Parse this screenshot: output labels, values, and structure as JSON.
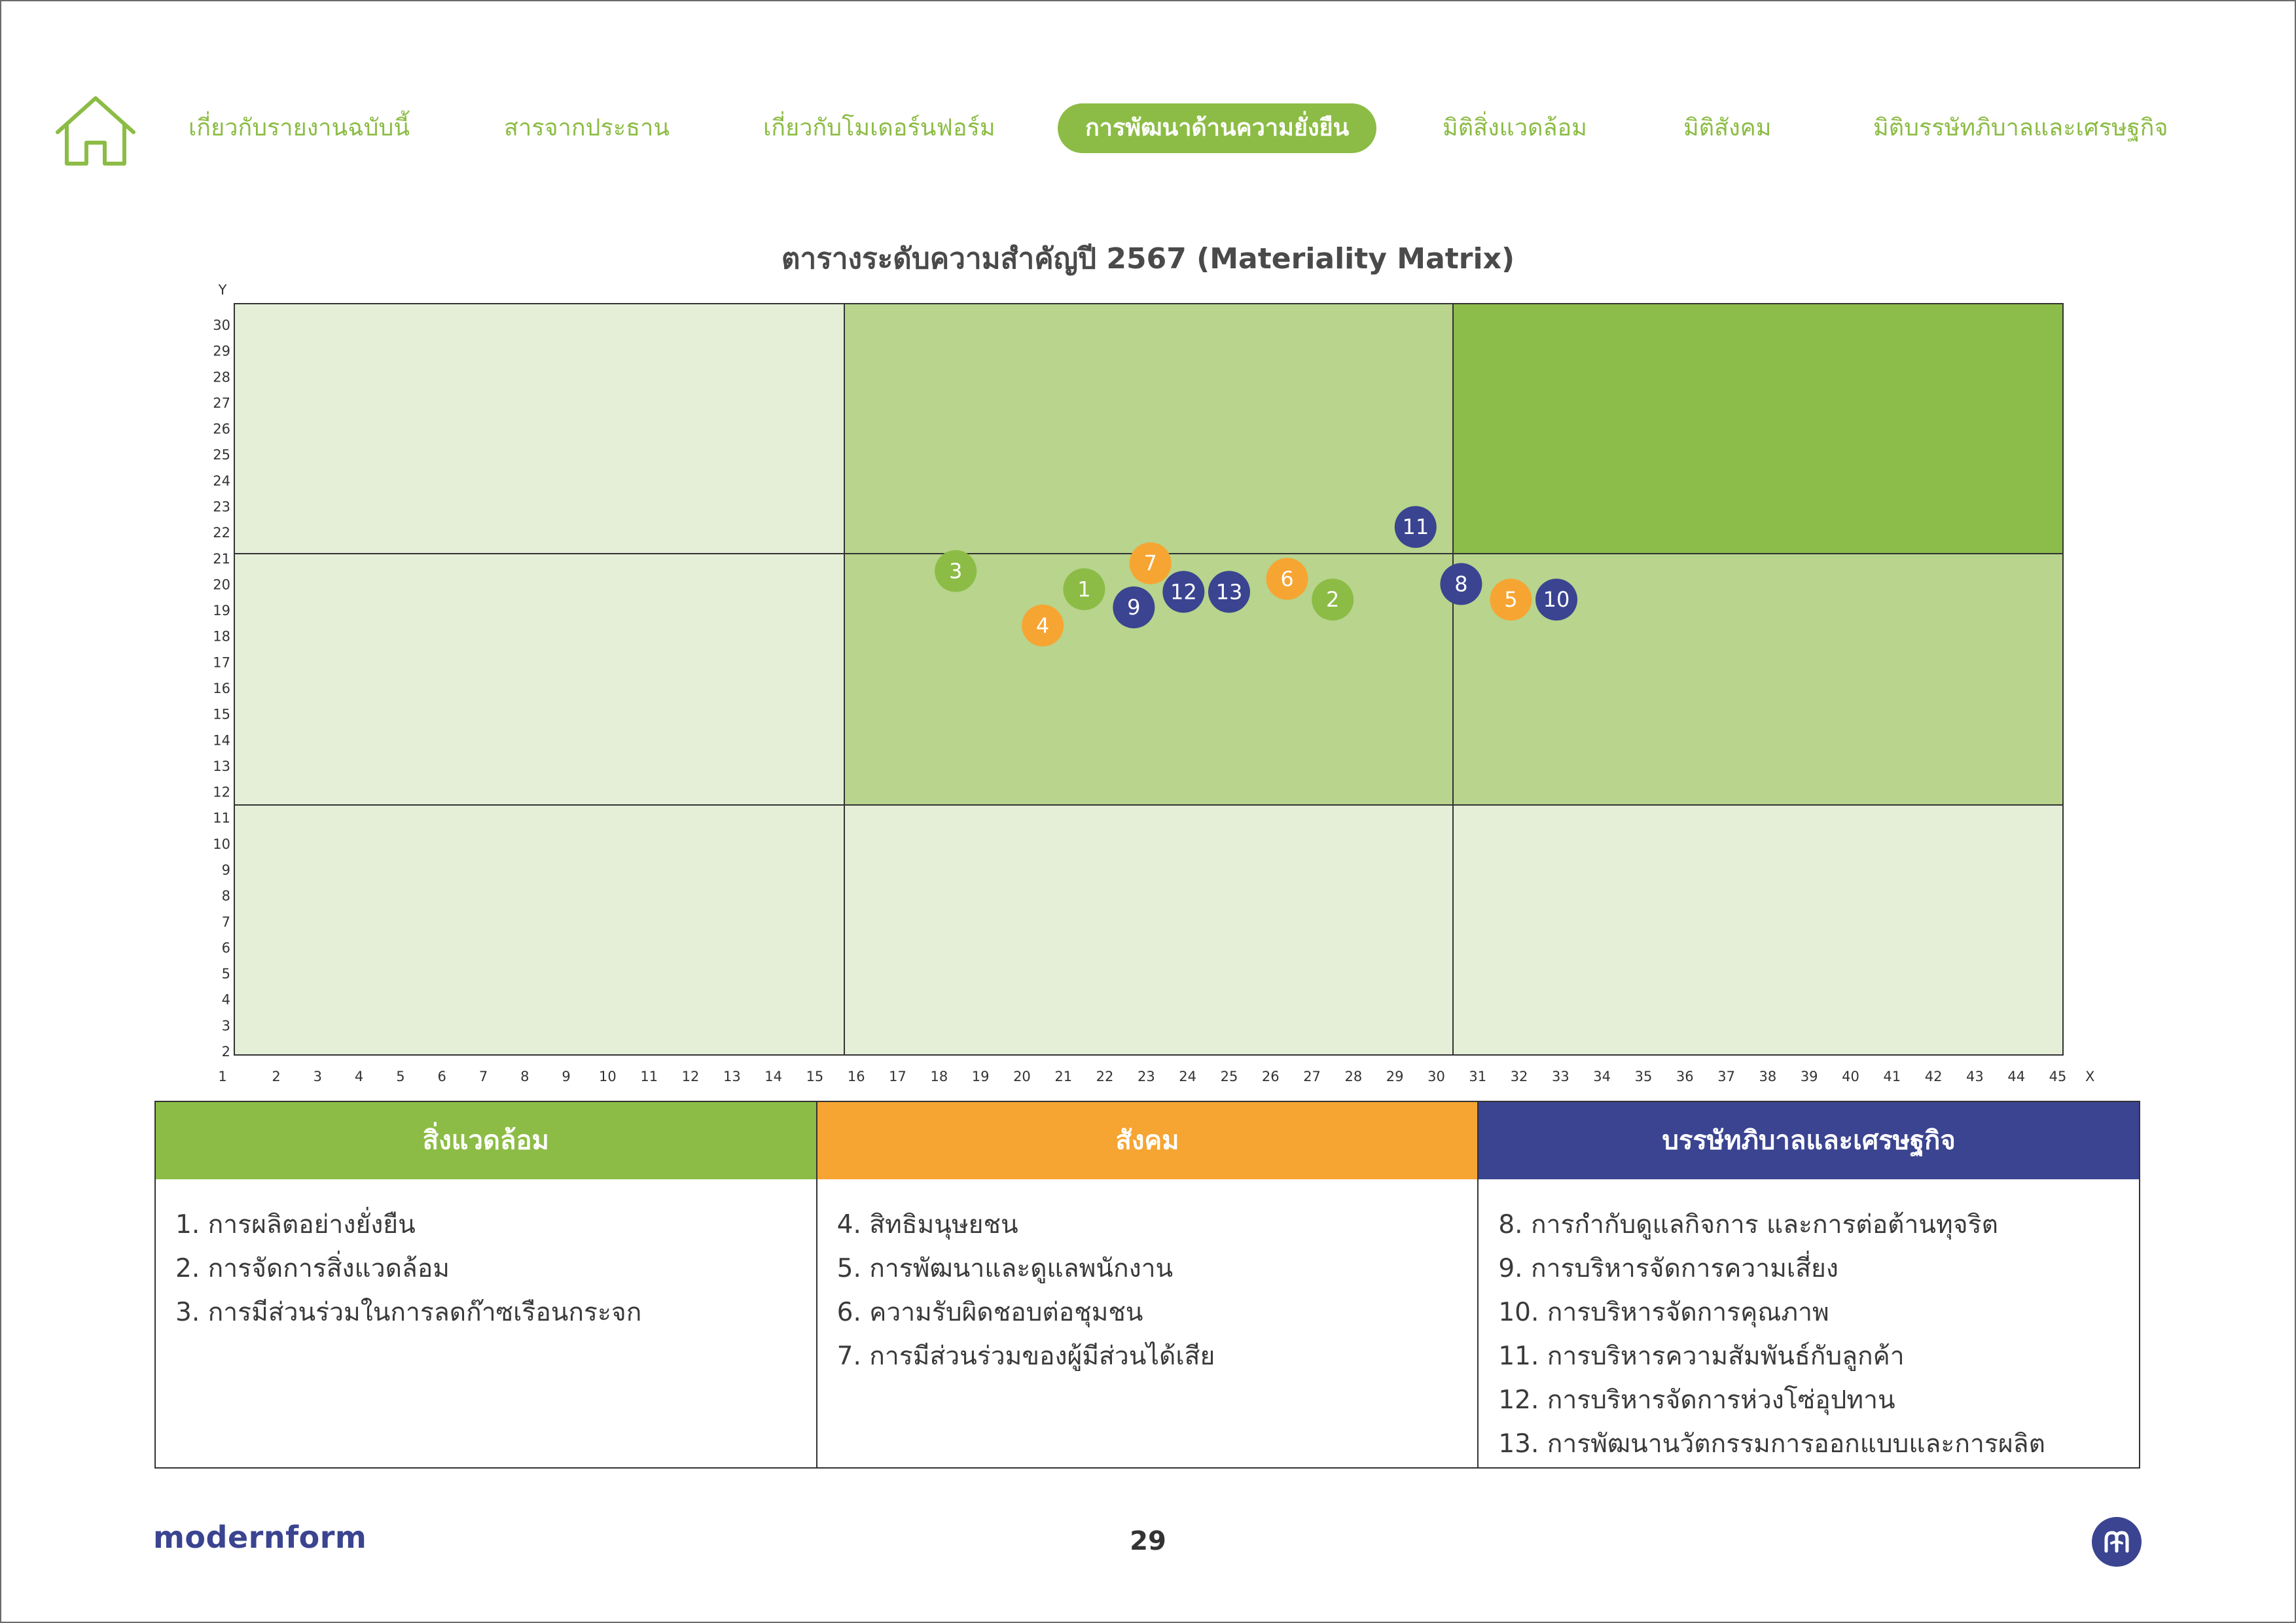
{
  "nav": {
    "items": [
      {
        "label": "เกี่ยวกับรายงานฉบับนี้",
        "active": false
      },
      {
        "label": "สารจากประธาน",
        "active": false
      },
      {
        "label": "เกี่ยวกับโมเดอร์นฟอร์ม",
        "active": false
      },
      {
        "label": "การพัฒนาด้านความยั่งยืน",
        "active": true
      },
      {
        "label": "มิติสิ่งแวดล้อม",
        "active": false
      },
      {
        "label": "มิติสังคม",
        "active": false
      },
      {
        "label": "มิติบรรษัทภิบาลและเศรษฐกิจ",
        "active": false
      }
    ],
    "home_icon": "home-icon"
  },
  "chart_data": {
    "type": "scatter",
    "title": "ตารางระดับความสำคัญปี 2567 (Materiality Matrix)",
    "xlabel": "X",
    "ylabel": "Y",
    "xlim": [
      1,
      45
    ],
    "ylim": [
      2,
      30
    ],
    "x_ticks": [
      1,
      2,
      3,
      4,
      5,
      6,
      7,
      8,
      9,
      10,
      11,
      12,
      13,
      14,
      15,
      16,
      17,
      18,
      19,
      20,
      21,
      22,
      23,
      24,
      25,
      26,
      27,
      28,
      29,
      30,
      31,
      32,
      33,
      34,
      35,
      36,
      37,
      38,
      39,
      40,
      41,
      42,
      43,
      44,
      45
    ],
    "y_ticks": [
      2,
      3,
      4,
      5,
      6,
      7,
      8,
      9,
      10,
      11,
      12,
      13,
      14,
      15,
      16,
      17,
      18,
      19,
      20,
      21,
      22,
      23,
      24,
      25,
      26,
      27,
      28,
      29,
      30
    ],
    "x_dividers": [
      15,
      30
    ],
    "y_dividers": [
      11,
      21
    ],
    "zone_colors": [
      [
        "#e5eed7",
        "#e5eed7",
        "#e5eed7"
      ],
      [
        "#e5eed7",
        "#b8d48d",
        "#b8d48d"
      ],
      [
        "#e5eed7",
        "#b8d48d",
        "#8cbc4a"
      ]
    ],
    "grid": false,
    "series": [
      {
        "name": "สิ่งแวดล้อม",
        "color": "#8cbc45",
        "points": [
          {
            "label": "1",
            "x": 21.5,
            "y": 19.8
          },
          {
            "label": "2",
            "x": 27.5,
            "y": 19.4
          },
          {
            "label": "3",
            "x": 18.4,
            "y": 20.5
          }
        ]
      },
      {
        "name": "สังคม",
        "color": "#f6a532",
        "points": [
          {
            "label": "4",
            "x": 20.5,
            "y": 18.4
          },
          {
            "label": "5",
            "x": 31.8,
            "y": 19.4
          },
          {
            "label": "6",
            "x": 26.4,
            "y": 20.2
          },
          {
            "label": "7",
            "x": 23.1,
            "y": 20.8
          }
        ]
      },
      {
        "name": "บรรษัทภิบาลและเศรษฐกิจ",
        "color": "#3a4490",
        "points": [
          {
            "label": "8",
            "x": 30.6,
            "y": 20.0
          },
          {
            "label": "9",
            "x": 22.7,
            "y": 19.1
          },
          {
            "label": "10",
            "x": 32.9,
            "y": 19.4
          },
          {
            "label": "11",
            "x": 29.5,
            "y": 22.2
          },
          {
            "label": "12",
            "x": 23.9,
            "y": 19.7
          },
          {
            "label": "13",
            "x": 25.0,
            "y": 19.7
          }
        ]
      }
    ]
  },
  "legend": [
    {
      "title": "สิ่งแวดล้อม",
      "color": "#8cbc45",
      "items": [
        "1. การผลิตอย่างยั่งยืน",
        "2. การจัดการสิ่งแวดล้อม",
        "3. การมีส่วนร่วมในการลดก๊าซเรือนกระจก"
      ]
    },
    {
      "title": "สังคม",
      "color": "#f6a532",
      "items": [
        "4. สิทธิมนุษยชน",
        "5. การพัฒนาและดูแลพนักงาน",
        "6. ความรับผิดชอบต่อชุมชน",
        "7. การมีส่วนร่วมของผู้มีส่วนได้เสีย"
      ]
    },
    {
      "title": "บรรษัทภิบาลและเศรษฐกิจ",
      "color": "#3a4490",
      "items": [
        "8.  การกำกับดูแลกิจการ และการต่อต้านทุจริต",
        "9. การบริหารจัดการความเสี่ยง",
        "10. การบริหารจัดการคุณภาพ",
        "11. การบริหารความสัมพันธ์กับลูกค้า",
        "12. การบริหารจัดการห่วงโซ่อุปทาน",
        "13. การพัฒนานวัตกรรมการออกแบบและการผลิต"
      ]
    }
  ],
  "footer": {
    "brand": "modernform",
    "page_number": "29",
    "logo_icon": "modernform-logo-icon"
  }
}
